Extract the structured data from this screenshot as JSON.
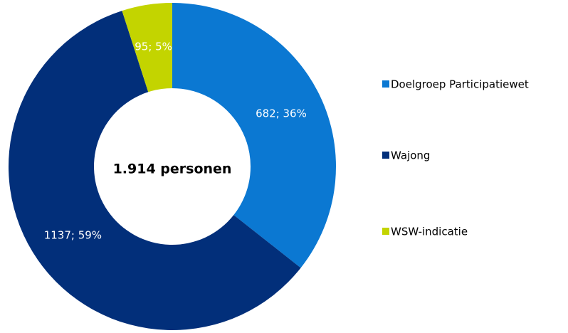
{
  "chart_data": {
    "type": "donut",
    "categories": [
      "Doelgroep Participatiewet",
      "Wajong",
      "WSW-indicatie"
    ],
    "values": [
      682,
      1137,
      95
    ],
    "value_labels": [
      "682; 36%",
      "1137; 59%",
      "95; 5%"
    ],
    "colors": [
      "#0b78d2",
      "#022f7a",
      "#c3d400"
    ],
    "center_label": "1.914 personen",
    "legend": "right"
  }
}
